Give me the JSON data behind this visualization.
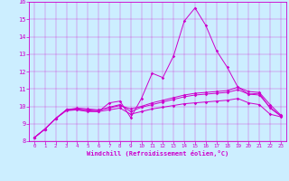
{
  "xlabel": "Windchill (Refroidissement éolien,°C)",
  "bg_color": "#cceeff",
  "line_color": "#cc00cc",
  "xlim": [
    -0.5,
    23.5
  ],
  "ylim": [
    8,
    16
  ],
  "xticks": [
    0,
    1,
    2,
    3,
    4,
    5,
    6,
    7,
    8,
    9,
    10,
    11,
    12,
    13,
    14,
    15,
    16,
    17,
    18,
    19,
    20,
    21,
    22,
    23
  ],
  "yticks": [
    8,
    9,
    10,
    11,
    12,
    13,
    14,
    15,
    16
  ],
  "lines": [
    [
      8.2,
      8.7,
      9.3,
      9.8,
      9.8,
      9.7,
      9.7,
      10.2,
      10.3,
      9.35,
      10.45,
      11.9,
      11.65,
      12.9,
      14.9,
      15.65,
      14.65,
      13.2,
      12.25,
      11.1,
      10.7,
      10.75,
      9.9,
      9.45
    ],
    [
      8.2,
      8.7,
      9.3,
      9.8,
      9.9,
      9.85,
      9.8,
      9.9,
      10.05,
      9.85,
      10.0,
      10.2,
      10.35,
      10.5,
      10.65,
      10.75,
      10.8,
      10.85,
      10.9,
      11.1,
      10.85,
      10.8,
      10.1,
      9.5
    ],
    [
      8.2,
      8.7,
      9.3,
      9.8,
      9.85,
      9.8,
      9.75,
      9.95,
      10.1,
      9.7,
      9.95,
      10.1,
      10.25,
      10.4,
      10.55,
      10.65,
      10.7,
      10.75,
      10.8,
      10.95,
      10.7,
      10.65,
      9.95,
      9.45
    ],
    [
      8.2,
      8.7,
      9.3,
      9.75,
      9.8,
      9.75,
      9.7,
      9.8,
      9.9,
      9.55,
      9.7,
      9.85,
      9.95,
      10.05,
      10.15,
      10.2,
      10.25,
      10.3,
      10.35,
      10.45,
      10.2,
      10.1,
      9.55,
      9.4
    ]
  ]
}
